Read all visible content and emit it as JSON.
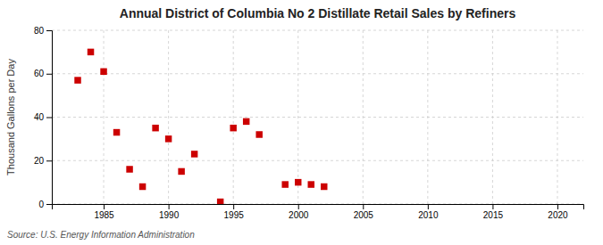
{
  "chart_data": {
    "type": "scatter",
    "title": "Annual District of Columbia No 2 Distillate Retail Sales by Refiners",
    "ylabel": "Thousand Gallons per Day",
    "source": "Source: U.S. Energy Information Administration",
    "x": [
      1983,
      1984,
      1985,
      1986,
      1987,
      1988,
      1989,
      1990,
      1991,
      1992,
      1994,
      1995,
      1996,
      1997,
      1999,
      2000,
      2001,
      2002
    ],
    "values": [
      57,
      70,
      61,
      33,
      16,
      8,
      35,
      30,
      15,
      23,
      1,
      35,
      38,
      32,
      9,
      10,
      9,
      8
    ],
    "color": "#cc0000",
    "marker": "square",
    "xlim": [
      1981,
      2022
    ],
    "ylim": [
      0,
      80
    ],
    "xticks": [
      1985,
      1990,
      1995,
      2000,
      2005,
      2010,
      2015,
      2020
    ],
    "yticks": [
      0,
      20,
      40,
      60,
      80
    ],
    "grid": true
  }
}
